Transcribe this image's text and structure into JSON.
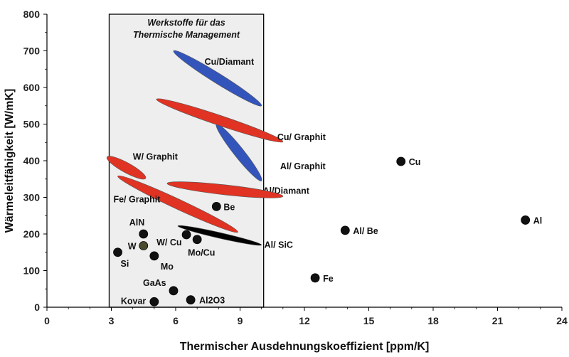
{
  "chart_data": {
    "type": "scatter",
    "title": "",
    "xlabel": "Thermischer Ausdehnungskoeffizient [ppm/K]",
    "ylabel": "Wärmeleitfähigkeit [W/mK]",
    "xlim": [
      0,
      24
    ],
    "ylim": [
      0,
      800
    ],
    "x_ticks": [
      0,
      3,
      6,
      9,
      12,
      15,
      18,
      21,
      24
    ],
    "y_ticks": [
      0,
      100,
      200,
      300,
      400,
      500,
      600,
      700,
      800
    ],
    "grid": false,
    "region": {
      "label_line1": "Werkstoffe für das",
      "label_line2": "Thermische Management",
      "x_range": [
        2.9,
        10.1
      ],
      "fill": "#eeeeee"
    },
    "colors": {
      "copper_composites": "#3355bb",
      "graphite_composites": "#e03323",
      "sic": "#000000",
      "marker": "#111111",
      "tungsten_marker": "#4a4a2e"
    },
    "points": [
      {
        "label": "Cu",
        "x": 16.5,
        "y": 398
      },
      {
        "label": "Al",
        "x": 22.3,
        "y": 238
      },
      {
        "label": "Al/ Be",
        "x": 13.9,
        "y": 210
      },
      {
        "label": "Fe",
        "x": 12.5,
        "y": 80
      },
      {
        "label": "Be",
        "x": 7.9,
        "y": 275
      },
      {
        "label": "AlN",
        "x": 4.5,
        "y": 200
      },
      {
        "label": "W",
        "x": 4.5,
        "y": 168
      },
      {
        "label": "Si",
        "x": 3.3,
        "y": 150
      },
      {
        "label": "Mo",
        "x": 5.0,
        "y": 140
      },
      {
        "label": "W/ Cu",
        "x": 6.5,
        "y": 198
      },
      {
        "label": "Mo/Cu",
        "x": 7.0,
        "y": 185
      },
      {
        "label": "GaAs",
        "x": 5.9,
        "y": 45
      },
      {
        "label": "Kovar",
        "x": 5.0,
        "y": 15
      },
      {
        "label": "Al2O3",
        "x": 6.7,
        "y": 20
      }
    ],
    "composites": [
      {
        "label": "Cu/Diamant",
        "group": "copper_composites",
        "from": [
          5.9,
          700
        ],
        "to": [
          10.0,
          550
        ]
      },
      {
        "label": "Al/Diamant",
        "group": "copper_composites",
        "from": [
          7.9,
          500
        ],
        "to": [
          10.0,
          345
        ]
      },
      {
        "label": "Cu/ Graphit",
        "group": "graphite_composites",
        "from": [
          5.1,
          568
        ],
        "to": [
          11.0,
          452
        ]
      },
      {
        "label": "W/ Graphit",
        "group": "graphite_composites",
        "from": [
          2.8,
          410
        ],
        "to": [
          4.6,
          352
        ]
      },
      {
        "label": "Al/ Graphit",
        "group": "graphite_composites",
        "from": [
          5.6,
          338
        ],
        "to": [
          11.0,
          303
        ]
      },
      {
        "label": "Fe/ Graphit",
        "group": "graphite_composites",
        "from": [
          3.3,
          358
        ],
        "to": [
          8.9,
          205
        ]
      },
      {
        "label": "Al/ SiC",
        "group": "sic",
        "from": [
          6.1,
          222
        ],
        "to": [
          10.0,
          170
        ]
      }
    ]
  }
}
